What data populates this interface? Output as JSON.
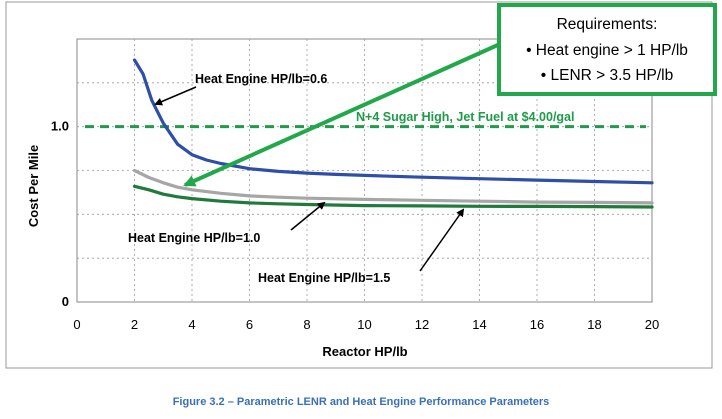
{
  "chart_data": {
    "type": "line",
    "title": "",
    "xlabel": "Reactor HP/lb",
    "ylabel": "Cost Per Mile",
    "xlim": [
      0,
      20
    ],
    "ylim": [
      0,
      1.5
    ],
    "x_ticks": [
      "0",
      "2",
      "4",
      "6",
      "8",
      "10",
      "12",
      "14",
      "16",
      "18",
      "20"
    ],
    "y_ticks": [
      {
        "value": 0,
        "label": "0"
      },
      {
        "value": 1.0,
        "label": "1.0"
      }
    ],
    "grid": "horizontal dashed, vertical dashed",
    "series": [
      {
        "key": "he06",
        "color": "#2e4ea8",
        "x": [
          2,
          2.3,
          2.6,
          3,
          3.5,
          4,
          4.5,
          5,
          6,
          7,
          8,
          9,
          10,
          12,
          14,
          16,
          18,
          20
        ],
        "y": [
          1.38,
          1.3,
          1.15,
          1.02,
          0.9,
          0.84,
          0.81,
          0.79,
          0.76,
          0.745,
          0.735,
          0.728,
          0.722,
          0.712,
          0.703,
          0.695,
          0.687,
          0.68
        ]
      },
      {
        "key": "he10",
        "color": "#a6a6a6",
        "x": [
          2,
          2.5,
          3,
          3.5,
          4,
          5,
          6,
          7,
          8,
          10,
          12,
          14,
          16,
          18,
          20
        ],
        "y": [
          0.75,
          0.71,
          0.68,
          0.655,
          0.64,
          0.62,
          0.605,
          0.598,
          0.592,
          0.585,
          0.58,
          0.575,
          0.57,
          0.568,
          0.565
        ]
      },
      {
        "key": "he15",
        "color": "#217a3c",
        "x": [
          2,
          2.5,
          3,
          3.5,
          4,
          5,
          6,
          7,
          8,
          10,
          12,
          14,
          16,
          18,
          20
        ],
        "y": [
          0.66,
          0.64,
          0.615,
          0.6,
          0.59,
          0.575,
          0.565,
          0.56,
          0.556,
          0.55,
          0.548,
          0.546,
          0.545,
          0.544,
          0.542
        ]
      }
    ],
    "reference_line": {
      "y": 1.0,
      "color": "#1f9b4a",
      "label": "N+4 Sugar High, Jet Fuel at $4.00/gal"
    },
    "annotations": [
      {
        "text": "Heat Engine HP/lb=0.6"
      },
      {
        "text": "Heat Engine HP/lb=1.0"
      },
      {
        "text": "Heat Engine HP/lb=1.5"
      }
    ],
    "requirements_box": {
      "title": "Requirements:",
      "items": [
        "• Heat engine > 1 HP/lb",
        "• LENR > 3.5 HP/lb"
      ],
      "border_color": "#22a84a"
    }
  },
  "caption": "Figure 3.2 – Parametric LENR and Heat Engine Performance Parameters"
}
